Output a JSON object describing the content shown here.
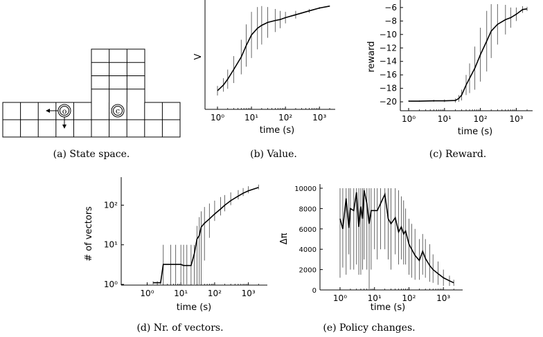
{
  "captions": {
    "a": "(a) State space.",
    "b": "(b) Value.",
    "c": "(c) Reward.",
    "d": "(d) Nr. of vectors.",
    "e": "(e) Policy changes."
  },
  "state_space": {
    "agent_marker": "o",
    "target_marker": "c",
    "arrows": [
      "left",
      "down"
    ]
  },
  "chart_data": [
    {
      "id": "value",
      "type": "line",
      "xscale": "log",
      "xlabel": "time (s)",
      "ylabel": "V",
      "xlim": [
        1,
        2000
      ],
      "ylim": [
        0,
        1
      ],
      "yticks": [],
      "x": [
        1,
        1.5,
        2,
        3,
        5,
        7,
        10,
        15,
        20,
        30,
        50,
        70,
        100,
        200,
        500,
        1000,
        2000
      ],
      "y": [
        0.1,
        0.16,
        0.22,
        0.32,
        0.45,
        0.57,
        0.68,
        0.75,
        0.78,
        0.81,
        0.83,
        0.84,
        0.86,
        0.89,
        0.93,
        0.96,
        0.98
      ],
      "err": [
        0.05,
        0.07,
        0.1,
        0.14,
        0.18,
        0.22,
        0.24,
        0.22,
        0.2,
        0.16,
        0.12,
        0.09,
        0.06,
        0.04,
        0.02,
        0.01,
        0.005
      ]
    },
    {
      "id": "reward",
      "type": "line",
      "xscale": "log",
      "xlabel": "time (s)",
      "ylabel": "reward",
      "xlim": [
        1,
        2000
      ],
      "ylim": [
        -20.5,
        -5.5
      ],
      "yticks": [
        -20,
        -18,
        -16,
        -14,
        -12,
        -10,
        -8,
        -6
      ],
      "x": [
        1,
        2,
        5,
        10,
        20,
        25,
        30,
        40,
        50,
        70,
        100,
        150,
        200,
        300,
        500,
        700,
        1000,
        1500,
        2000
      ],
      "y": [
        -19.9,
        -19.9,
        -19.85,
        -19.85,
        -19.8,
        -19.5,
        -19.0,
        -17.5,
        -16.5,
        -15.0,
        -13.0,
        -11.0,
        -9.5,
        -8.5,
        -7.8,
        -7.5,
        -7.0,
        -6.3,
        -6.2
      ],
      "err": [
        0.1,
        0.1,
        0.15,
        0.2,
        0.3,
        0.5,
        0.8,
        1.5,
        2.2,
        3.2,
        4.0,
        4.5,
        4.0,
        3.0,
        2.2,
        1.5,
        1.0,
        0.5,
        0.3
      ]
    },
    {
      "id": "vectors",
      "type": "line",
      "xscale": "log",
      "yscale": "log",
      "xlabel": "time (s)",
      "ylabel": "# of vectors",
      "xlim": [
        0.3,
        2500
      ],
      "ylim": [
        1,
        400
      ],
      "xticks": [
        1,
        10,
        100,
        1000
      ],
      "yticks": [
        1,
        10,
        100
      ],
      "x": [
        1.5,
        2,
        2.5,
        3,
        5,
        7,
        10,
        12,
        15,
        20,
        25,
        30,
        35,
        40,
        50,
        70,
        100,
        150,
        200,
        300,
        500,
        700,
        1000,
        2000
      ],
      "y": [
        1.1,
        1.1,
        1.1,
        3.2,
        3.2,
        3.2,
        3.2,
        3.0,
        3.0,
        3.0,
        6.0,
        14.0,
        17.0,
        28.0,
        35.0,
        45.0,
        60.0,
        80.0,
        100.0,
        130.0,
        170.0,
        200.0,
        230.0,
        280.0
      ],
      "err_low": [
        1.0,
        1.0,
        1.0,
        1.0,
        1.0,
        1.0,
        1.0,
        1.0,
        1.0,
        1.0,
        1.0,
        1.0,
        1.0,
        1.0,
        4.0,
        15.0,
        40.0,
        55.0,
        70.0,
        100.0,
        140.0,
        170.0,
        200.0,
        250.0
      ],
      "err_high": [
        1.2,
        1.2,
        1.2,
        10.0,
        10.0,
        10.0,
        10.0,
        10.0,
        10.0,
        10.0,
        10.0,
        30.0,
        50.0,
        70.0,
        90.0,
        110.0,
        130.0,
        160.0,
        180.0,
        210.0,
        240.0,
        270.0,
        300.0,
        330.0
      ]
    },
    {
      "id": "policy",
      "type": "line",
      "xscale": "log",
      "xlabel": "time (s)",
      "ylabel": "Δπ",
      "xlim": [
        0.5,
        2500
      ],
      "ylim": [
        0,
        10000
      ],
      "yticks": [
        0,
        2000,
        4000,
        6000,
        8000,
        10000
      ],
      "xticks": [
        1,
        10,
        100,
        1000
      ],
      "x": [
        1,
        1.2,
        1.5,
        1.8,
        2,
        2.5,
        3,
        3.5,
        4,
        4.5,
        5,
        6,
        7,
        8,
        10,
        12,
        15,
        20,
        25,
        30,
        40,
        50,
        60,
        70,
        80,
        100,
        120,
        150,
        200,
        250,
        300,
        400,
        500,
        700,
        1000,
        1500,
        2000
      ],
      "y": [
        7000,
        6000,
        9000,
        6100,
        8000,
        7800,
        9600,
        6200,
        8200,
        7000,
        9800,
        8500,
        6500,
        7800,
        7800,
        7800,
        8500,
        9400,
        7000,
        6500,
        7100,
        5700,
        6200,
        5500,
        5800,
        4500,
        4000,
        3400,
        2900,
        3800,
        3100,
        2400,
        2000,
        1600,
        1200,
        900,
        700
      ],
      "err_low": [
        1200,
        2200,
        1500,
        3500,
        2000,
        2000,
        2500,
        1500,
        1500,
        2000,
        3000,
        2000,
        0,
        2000,
        4000,
        3000,
        4000,
        4000,
        3000,
        2000,
        3500,
        2500,
        3000,
        2500,
        2500,
        1500,
        1200,
        1000,
        1000,
        1500,
        1200,
        800,
        700,
        500,
        400,
        400,
        400
      ],
      "err_high": [
        10000,
        10000,
        10000,
        10000,
        10000,
        10000,
        10000,
        10000,
        10000,
        10000,
        10000,
        10000,
        10000,
        10000,
        10000,
        10000,
        10000,
        10000,
        10000,
        10000,
        10000,
        9800,
        9200,
        8800,
        8000,
        7000,
        6500,
        6000,
        5000,
        5500,
        5000,
        4500,
        3500,
        2800,
        2000,
        1400,
        1000
      ]
    }
  ]
}
